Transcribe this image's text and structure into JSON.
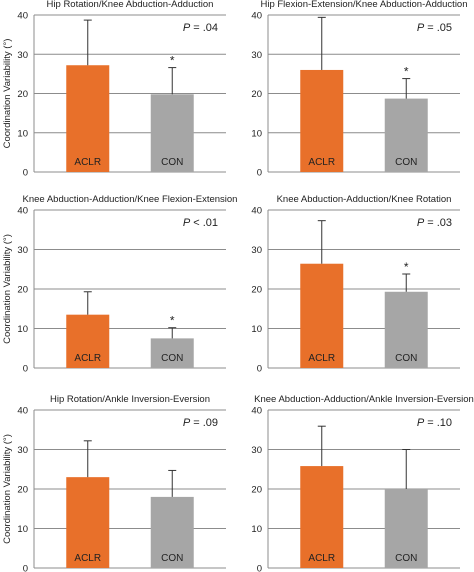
{
  "figure": {
    "ylabel": "Coordination Variability (°)",
    "colors": {
      "ACLR": "#E8702A",
      "CON": "#A6A6A6",
      "grid": "#8C8C8C",
      "axis": "#8C8C8C",
      "text": "#222222"
    }
  },
  "chart_data": [
    {
      "type": "bar",
      "title": "Hip Rotation/Knee Abduction-Adduction",
      "categories": [
        "ACLR",
        "CON"
      ],
      "values": [
        27.2,
        19.8
      ],
      "error": [
        11.5,
        6.8
      ],
      "p_prefix": "P",
      "p_value": " = .04",
      "significance": [
        "",
        "*"
      ],
      "ylabel": "Coordination Variability (°)",
      "yticks": [
        0,
        10,
        20,
        30,
        40
      ],
      "ylim": [
        0,
        40
      ],
      "grid": true
    },
    {
      "type": "bar",
      "title": "Hip Flexion-Extension/Knee Abduction-Adduction",
      "categories": [
        "ACLR",
        "CON"
      ],
      "values": [
        26.0,
        18.7
      ],
      "error": [
        13.4,
        5.1
      ],
      "p_prefix": "P",
      "p_value": " = .05",
      "significance": [
        "",
        "*"
      ],
      "ylabel": "",
      "yticks": [
        0,
        10,
        20,
        30,
        40
      ],
      "ylim": [
        0,
        40
      ],
      "grid": true
    },
    {
      "type": "bar",
      "title": "Knee Abduction-Adduction/Knee Flexion-Extension",
      "categories": [
        "ACLR",
        "CON"
      ],
      "values": [
        13.5,
        7.5
      ],
      "error": [
        5.8,
        2.7
      ],
      "p_prefix": "P",
      "p_value": " < .01",
      "significance": [
        "",
        "*"
      ],
      "ylabel": "Coordination Variability (°)",
      "yticks": [
        0,
        10,
        20,
        30,
        40
      ],
      "ylim": [
        0,
        40
      ],
      "grid": true
    },
    {
      "type": "bar",
      "title": "Knee Abduction-Adduction/Knee Rotation",
      "categories": [
        "ACLR",
        "CON"
      ],
      "values": [
        26.4,
        19.3
      ],
      "error": [
        10.9,
        4.5
      ],
      "p_prefix": "P",
      "p_value": " = .03",
      "significance": [
        "",
        "*"
      ],
      "ylabel": "",
      "yticks": [
        0,
        10,
        20,
        30,
        40
      ],
      "ylim": [
        0,
        40
      ],
      "grid": true
    },
    {
      "type": "bar",
      "title": "Hip Rotation/Ankle Inversion-Eversion",
      "categories": [
        "ACLR",
        "CON"
      ],
      "values": [
        23.0,
        18.0
      ],
      "error": [
        9.2,
        6.7
      ],
      "p_prefix": "P",
      "p_value": " = .09",
      "significance": [
        "",
        ""
      ],
      "ylabel": "Coordination Variability (°)",
      "yticks": [
        0,
        10,
        20,
        30,
        40
      ],
      "ylim": [
        0,
        40
      ],
      "grid": true
    },
    {
      "type": "bar",
      "title": "Knee Abduction-Adduction/Ankle Inversion-Eversion",
      "categories": [
        "ACLR",
        "CON"
      ],
      "values": [
        25.8,
        20.0
      ],
      "error": [
        10.1,
        10.0
      ],
      "p_prefix": "P",
      "p_value": " = .10",
      "significance": [
        "",
        ""
      ],
      "ylabel": "",
      "yticks": [
        0,
        10,
        20,
        30,
        40
      ],
      "ylim": [
        0,
        40
      ],
      "grid": true
    }
  ]
}
